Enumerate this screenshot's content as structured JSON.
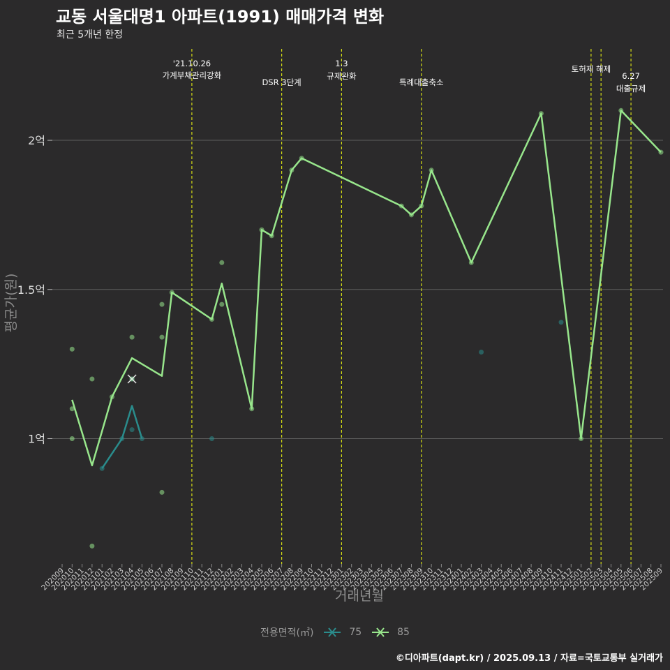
{
  "title": "교동 서울대명1 아파트(1991) 매매가격 변화",
  "subtitle": "최근 5개년 한정",
  "caption": "©디아파트(dapt.kr) / 2025.09.13 / 자료=국토교통부 실거래가",
  "colors": {
    "background": "#2b2a2b",
    "grid": "#5e5e5e",
    "series75": "#2a8c8c",
    "series85": "#98e68c",
    "event_line": "#d4dc14"
  },
  "chart_data": {
    "type": "line",
    "title": "교동 서울대명1 아파트(1991) 매매가격 변화",
    "subtitle": "최근 5개년 한정",
    "xlabel": "거래년월",
    "ylabel": "평균가(원)",
    "ylim": [
      0.58,
      2.33
    ],
    "yticks": [
      {
        "value": 1.0,
        "label": "1억"
      },
      {
        "value": 1.5,
        "label": "1.5억"
      },
      {
        "value": 2.0,
        "label": "2억"
      }
    ],
    "categories": [
      "202009",
      "202010",
      "202011",
      "202012",
      "202101",
      "202102",
      "202103",
      "202104",
      "202105",
      "202106",
      "202107",
      "202108",
      "202109",
      "202110",
      "202111",
      "202112",
      "202201",
      "202202",
      "202203",
      "202204",
      "202205",
      "202206",
      "202207",
      "202208",
      "202209",
      "202210",
      "202211",
      "202212",
      "202301",
      "202302",
      "202303",
      "202304",
      "202305",
      "202306",
      "202307",
      "202308",
      "202309",
      "202310",
      "202311",
      "202312",
      "202401",
      "202402",
      "202403",
      "202404",
      "202405",
      "202406",
      "202407",
      "202408",
      "202409",
      "202410",
      "202411",
      "202412",
      "202501",
      "202502",
      "202503",
      "202504",
      "202505",
      "202506",
      "202507",
      "202508",
      "202509"
    ],
    "legend": {
      "title": "전용면적(㎡)",
      "entries": [
        "75",
        "85"
      ]
    },
    "series": [
      {
        "name": "75",
        "line": [
          [
            "202101",
            0.9
          ],
          [
            "202103",
            1.0
          ],
          [
            "202104",
            1.11
          ],
          [
            "202105",
            1.0
          ]
        ],
        "points": [
          [
            "202101",
            0.9
          ],
          [
            "202103",
            1.0
          ],
          [
            "202104",
            1.2
          ],
          [
            "202104",
            1.03
          ],
          [
            "202105",
            1.0
          ],
          [
            "202112",
            1.0
          ],
          [
            "202403",
            1.29
          ],
          [
            "202411",
            1.39
          ]
        ]
      },
      {
        "name": "85",
        "line": [
          [
            "202010",
            1.13
          ],
          [
            "202012",
            0.91
          ],
          [
            "202102",
            1.14
          ],
          [
            "202104",
            1.27
          ],
          [
            "202107",
            1.21
          ],
          [
            "202108",
            1.49
          ],
          [
            "202112",
            1.4
          ],
          [
            "202201",
            1.52
          ],
          [
            "202204",
            1.1
          ],
          [
            "202205",
            1.7
          ],
          [
            "202206",
            1.68
          ],
          [
            "202208",
            1.9
          ],
          [
            "202209",
            1.94
          ],
          [
            "202307",
            1.78
          ],
          [
            "202308",
            1.75
          ],
          [
            "202309",
            1.78
          ],
          [
            "202310",
            1.9
          ],
          [
            "202402",
            1.59
          ],
          [
            "202409",
            2.09
          ],
          [
            "202501",
            1.0
          ],
          [
            "202505",
            2.1
          ],
          [
            "202509",
            1.96
          ]
        ],
        "points": [
          [
            "202010",
            1.3
          ],
          [
            "202010",
            1.1
          ],
          [
            "202010",
            1.0
          ],
          [
            "202012",
            1.2
          ],
          [
            "202012",
            0.64
          ],
          [
            "202102",
            1.14
          ],
          [
            "202104",
            1.34
          ],
          [
            "202104",
            1.2
          ],
          [
            "202107",
            1.45
          ],
          [
            "202107",
            1.34
          ],
          [
            "202107",
            0.82
          ],
          [
            "202108",
            1.49
          ],
          [
            "202112",
            1.4
          ],
          [
            "202201",
            1.59
          ],
          [
            "202201",
            1.45
          ],
          [
            "202204",
            1.1
          ],
          [
            "202205",
            1.7
          ],
          [
            "202206",
            1.68
          ],
          [
            "202208",
            1.9
          ],
          [
            "202209",
            1.94
          ],
          [
            "202307",
            1.78
          ],
          [
            "202308",
            1.75
          ],
          [
            "202309",
            1.78
          ],
          [
            "202310",
            1.9
          ],
          [
            "202402",
            1.59
          ],
          [
            "202409",
            2.09
          ],
          [
            "202501",
            1.0
          ],
          [
            "202505",
            2.1
          ],
          [
            "202509",
            1.96
          ]
        ]
      }
    ],
    "highlight": {
      "month": "202104",
      "value": 1.2
    },
    "annotations": [
      {
        "month": "202110",
        "lines": [
          "'21.10.26",
          "가계부채관리강화"
        ]
      },
      {
        "month": "202207",
        "lines": [
          "DSR 3단계"
        ]
      },
      {
        "month": "202301",
        "lines": [
          "1.3",
          "규제완화"
        ]
      },
      {
        "month": "202309",
        "lines": [
          "특례대출축소"
        ]
      },
      {
        "month": "202502",
        "lines": [
          "토허제 해제"
        ]
      },
      {
        "month": "202503",
        "lines": []
      },
      {
        "month": "202506",
        "lines": [
          "6.27",
          "대출규제"
        ]
      }
    ]
  }
}
